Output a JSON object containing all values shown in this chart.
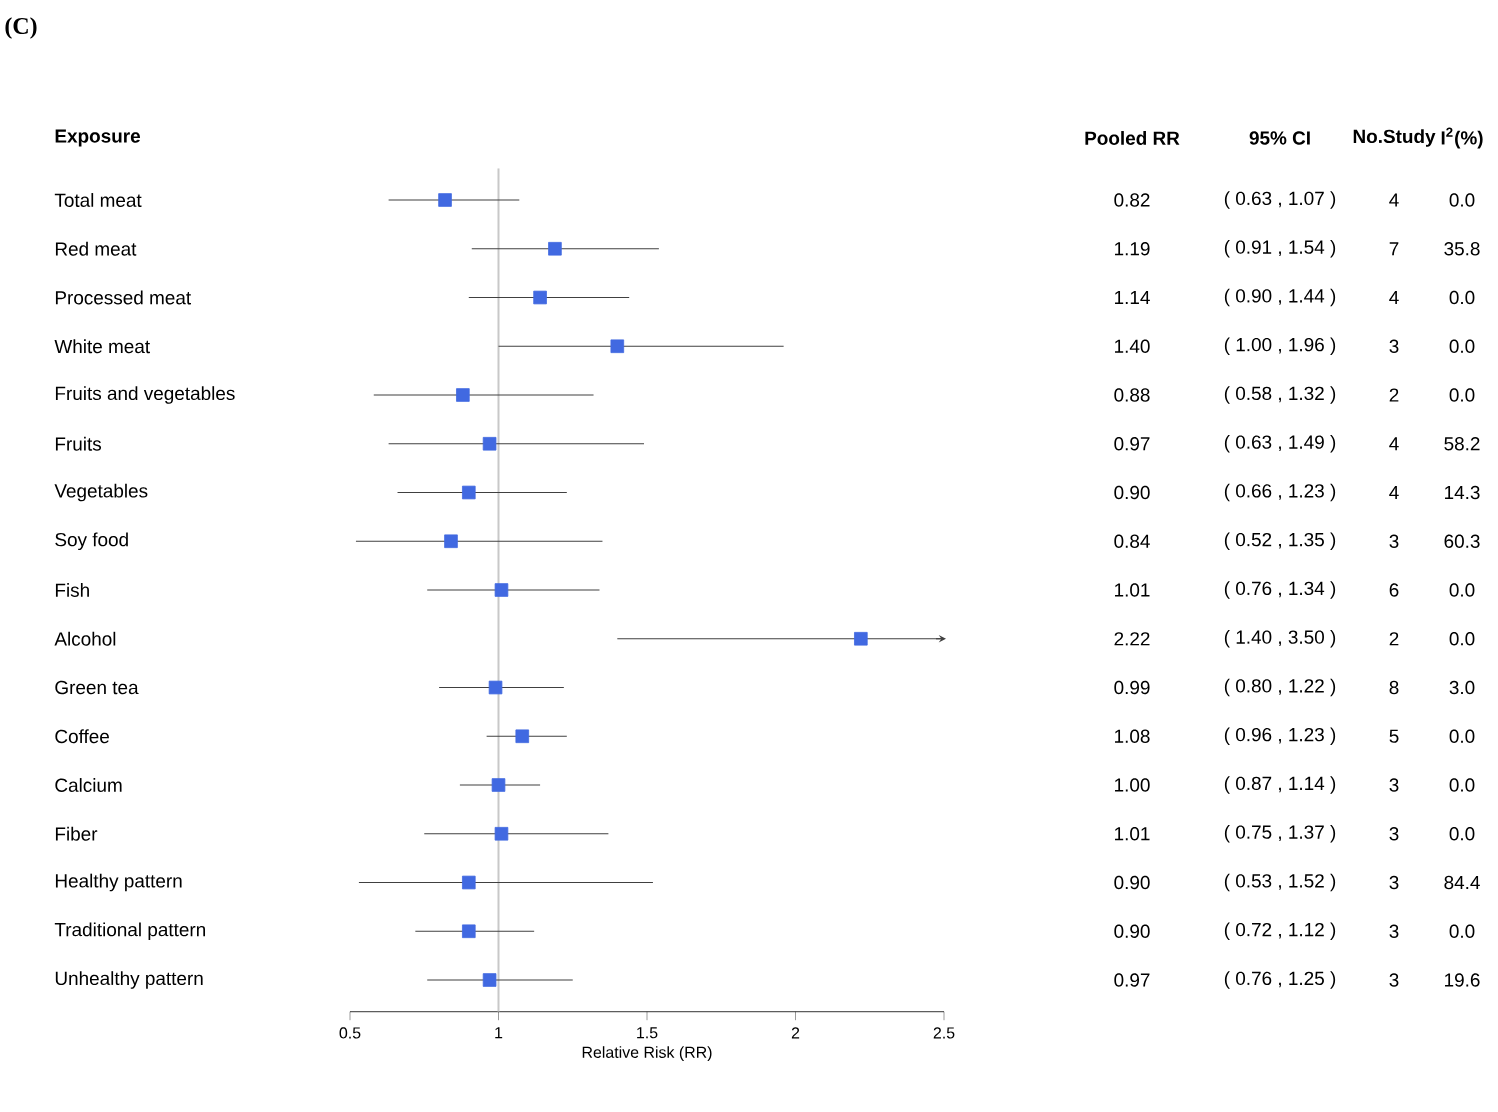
{
  "chart_data": {
    "type": "scatter",
    "orientation": "horizontal",
    "title": "(C)",
    "xlabel": "Relative Risk (RR)",
    "categories": [
      "Total meat",
      "Red meat",
      "Processed meat",
      "White meat",
      "Fruits and vegetables",
      "Fruits",
      "Vegetables",
      "Soy food",
      "Fish",
      "Alcohol",
      "Green tea",
      "Coffee",
      "Calcium",
      "Fiber",
      "Healthy pattern",
      "Traditional pattern",
      "Unhealthy pattern"
    ],
    "values": [
      0.82,
      1.19,
      1.14,
      1.4,
      0.88,
      0.97,
      0.9,
      0.84,
      1.01,
      2.22,
      0.99,
      1.08,
      1.0,
      1.01,
      0.9,
      0.9,
      0.97
    ],
    "errors": [
      [
        0.63,
        1.07
      ],
      [
        0.91,
        1.54
      ],
      [
        0.9,
        1.44
      ],
      [
        1.0,
        1.96
      ],
      [
        0.58,
        1.32
      ],
      [
        0.63,
        1.49
      ],
      [
        0.66,
        1.23
      ],
      [
        0.52,
        1.35
      ],
      [
        0.76,
        1.34
      ],
      [
        1.4,
        3.5
      ],
      [
        0.8,
        1.22
      ],
      [
        0.96,
        1.23
      ],
      [
        0.87,
        1.14
      ],
      [
        0.75,
        1.37
      ],
      [
        0.53,
        1.52
      ],
      [
        0.72,
        1.12
      ],
      [
        0.76,
        1.25
      ]
    ],
    "value_labels": [
      "0.82",
      "1.19",
      "1.14",
      "1.40",
      "0.88",
      "0.97",
      "0.90",
      "0.84",
      "1.01",
      "2.22",
      "0.99",
      "1.08",
      "1.00",
      "1.01",
      "0.90",
      "0.90",
      "0.97"
    ],
    "color": "#4169e1",
    "marker": "square",
    "xlim": [
      0.5,
      2.5
    ],
    "xticks": [
      0.5,
      1,
      1.5,
      2,
      2.5
    ],
    "ref_lines": [
      {
        "axis": "x",
        "value": 1,
        "color": "#c8c8c8"
      }
    ],
    "annotations": [
      "Exposure",
      "Pooled RR",
      "95% CI",
      "No.Study",
      "I$^{2}$(%)",
      "( 0.63 , 1.07 )",
      "4",
      "0.0",
      "( 0.91 , 1.54 )",
      "7",
      "35.8",
      "( 0.90 , 1.44 )",
      "4",
      "0.0",
      "( 1.00 , 1.96 )",
      "3",
      "0.0",
      "( 0.58 , 1.32 )",
      "2",
      "0.0",
      "( 0.63 , 1.49 )",
      "4",
      "58.2",
      "( 0.66 , 1.23 )",
      "4",
      "14.3",
      "( 0.52 , 1.35 )",
      "3",
      "60.3",
      "( 0.76 , 1.34 )",
      "6",
      "0.0",
      "( 1.40 , 3.50 )",
      "2",
      "0.0",
      "( 0.80 , 1.22 )",
      "8",
      "3.0",
      "( 0.96 , 1.23 )",
      "5",
      "0.0",
      "( 0.87 , 1.14 )",
      "3",
      "0.0",
      "( 0.75 , 1.37 )",
      "3",
      "0.0",
      "( 0.53 , 1.52 )",
      "3",
      "84.4",
      "( 0.72 , 1.12 )",
      "3",
      "0.0",
      "( 0.76 , 1.25 )",
      "3",
      "19.6"
    ]
  }
}
